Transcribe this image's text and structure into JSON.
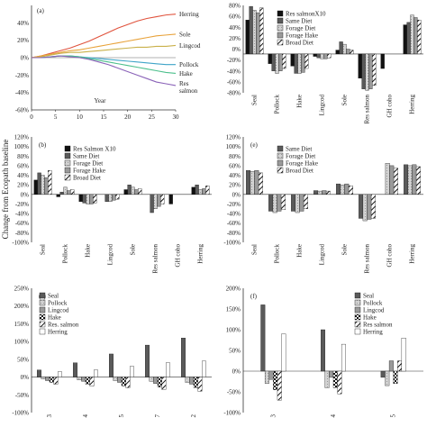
{
  "figure": {
    "shared_ylabel": "Change from Ecopath baseline"
  },
  "chart_data": [
    {
      "id": "a",
      "type": "line",
      "panel_label": "(a)",
      "xlabel": "Year",
      "ylabel": "",
      "xlim": [
        0,
        30
      ],
      "ylim": [
        -60,
        60
      ],
      "xticks": [
        "0",
        "5",
        "10",
        "15",
        "20",
        "25",
        "30"
      ],
      "yticks": [
        "-60%",
        "-40%",
        "-20%",
        "0%",
        "20%",
        "40%"
      ],
      "grid": false,
      "legend_position": "right",
      "series": [
        {
          "name": "Herring",
          "color": "#e0523c",
          "x": [
            0,
            2,
            4,
            6,
            8,
            10,
            12,
            14,
            16,
            18,
            20,
            22,
            24,
            26,
            28,
            30
          ],
          "y": [
            0,
            2,
            5,
            8,
            11,
            15,
            19,
            24,
            29,
            34,
            38,
            42,
            45,
            47,
            49,
            50
          ]
        },
        {
          "name": "Sole",
          "color": "#e8a23a",
          "x": [
            0,
            2,
            4,
            6,
            8,
            10,
            12,
            14,
            16,
            18,
            20,
            22,
            24,
            26,
            28,
            30
          ],
          "y": [
            0,
            2,
            4,
            6,
            8,
            9,
            11,
            13,
            15,
            17,
            19,
            21,
            23,
            25,
            26,
            27
          ]
        },
        {
          "name": "Lingcod",
          "color": "#c9b04a",
          "x": [
            0,
            2,
            4,
            6,
            8,
            10,
            12,
            14,
            16,
            18,
            20,
            22,
            24,
            26,
            28,
            30
          ],
          "y": [
            0,
            1,
            3,
            5,
            6,
            6,
            7,
            8,
            9,
            10,
            11,
            12,
            12,
            13,
            13,
            14
          ]
        },
        {
          "name": "Pollock",
          "color": "#3fa4c8",
          "x": [
            0,
            2,
            4,
            6,
            8,
            10,
            12,
            14,
            16,
            18,
            20,
            22,
            24,
            26,
            28,
            30
          ],
          "y": [
            0,
            0,
            1,
            2,
            2,
            1,
            0,
            -1,
            -2,
            -3,
            -4,
            -5,
            -6,
            -7,
            -8,
            -8
          ]
        },
        {
          "name": "Hake",
          "color": "#4cbf8c",
          "x": [
            0,
            2,
            4,
            6,
            8,
            10,
            12,
            14,
            16,
            18,
            20,
            22,
            24,
            26,
            28,
            30
          ],
          "y": [
            0,
            0,
            1,
            2,
            2,
            1,
            -1,
            -3,
            -5,
            -7,
            -9,
            -11,
            -13,
            -15,
            -17,
            -18
          ]
        },
        {
          "name": "Res salmon",
          "color": "#8a62b8",
          "x": [
            0,
            2,
            4,
            6,
            8,
            10,
            12,
            14,
            16,
            18,
            20,
            22,
            24,
            26,
            28,
            30
          ],
          "y": [
            0,
            0,
            1,
            2,
            1,
            0,
            -2,
            -5,
            -8,
            -12,
            -16,
            -20,
            -24,
            -28,
            -30,
            -32
          ]
        }
      ]
    },
    {
      "id": "d",
      "type": "bar",
      "panel_label": "",
      "ylim": [
        -80,
        100
      ],
      "yticks": [
        "-80%",
        "-60%",
        "-40%",
        "-20%",
        "0%",
        "20%",
        "40%",
        "60%",
        "80%"
      ],
      "categories": [
        "Seal",
        "Pollock",
        "Hake",
        "Lingcod",
        "Sole",
        "Res salmon",
        "GH coho",
        "Herring"
      ],
      "legend_position": "top-right",
      "series": [
        {
          "name": "Res salmonX10",
          "pattern": "black",
          "values": [
            70,
            -20,
            -25,
            -5,
            8,
            -50,
            -30,
            60
          ]
        },
        {
          "name": "Same Diet",
          "pattern": "darkgray",
          "values": [
            98,
            -35,
            -40,
            -8,
            25,
            -72,
            0,
            65
          ]
        },
        {
          "name": "Forage Diet",
          "pattern": "lightgray",
          "values": [
            90,
            -40,
            -40,
            -10,
            20,
            -75,
            0,
            80
          ]
        },
        {
          "name": "Forage Hake",
          "pattern": "gray",
          "values": [
            85,
            -35,
            -38,
            -10,
            10,
            -72,
            0,
            75
          ]
        },
        {
          "name": "Broad Diet",
          "pattern": "hatch",
          "values": [
            95,
            -30,
            -30,
            -8,
            8,
            -65,
            0,
            70
          ]
        }
      ]
    },
    {
      "id": "b",
      "type": "bar",
      "panel_label": "(b)",
      "ylim": [
        -100,
        120
      ],
      "yticks": [
        "-100%",
        "-80%",
        "-60%",
        "-40%",
        "-20%",
        "0%",
        "20%",
        "40%",
        "60%",
        "80%",
        "100%",
        "120%"
      ],
      "categories": [
        "Seal",
        "Pollock",
        "Hake",
        "Lingcod",
        "Sole",
        "Res salmon",
        "GH coho",
        "Herring"
      ],
      "legend_position": "top-center",
      "series": [
        {
          "name": "Res Salmon X10",
          "pattern": "black",
          "values": [
            30,
            -5,
            -15,
            0,
            10,
            0,
            -20,
            15
          ]
        },
        {
          "name": "Same Diet",
          "pattern": "darkgray",
          "values": [
            45,
            5,
            -18,
            -15,
            20,
            -38,
            0,
            20
          ]
        },
        {
          "name": "Forage Diet",
          "pattern": "lightgray",
          "values": [
            40,
            15,
            -20,
            -15,
            15,
            -30,
            0,
            10
          ]
        },
        {
          "name": "Forage Hake",
          "pattern": "gray",
          "values": [
            35,
            8,
            -20,
            -12,
            10,
            -25,
            0,
            12
          ]
        },
        {
          "name": "Broad Diet",
          "pattern": "hatch",
          "values": [
            50,
            10,
            -18,
            -10,
            12,
            -20,
            0,
            18
          ]
        }
      ]
    },
    {
      "id": "e",
      "type": "bar",
      "panel_label": "(e)",
      "ylim": [
        -100,
        120
      ],
      "yticks": [
        "-100%",
        "-80%",
        "-60%",
        "-40%",
        "-20%",
        "0%",
        "20%",
        "40%",
        "60%",
        "80%",
        "100%",
        "120%"
      ],
      "categories": [
        "Seal",
        "Pollock",
        "Hake",
        "Lingcod",
        "Sole",
        "Res salmon",
        "GH coho",
        "Herring"
      ],
      "legend_position": "top-center",
      "series": [
        {
          "name": "Same Diet",
          "pattern": "darkgray",
          "values": [
            50,
            -35,
            -35,
            8,
            22,
            -50,
            0,
            62
          ]
        },
        {
          "name": "Forage Diet",
          "pattern": "lightgray",
          "values": [
            48,
            -38,
            -38,
            7,
            20,
            -55,
            65,
            60
          ]
        },
        {
          "name": "Forage Hake",
          "pattern": "gray",
          "values": [
            50,
            -35,
            -35,
            8,
            22,
            -52,
            60,
            62
          ]
        },
        {
          "name": "Broad Diet",
          "pattern": "hatch",
          "values": [
            45,
            -32,
            -30,
            7,
            18,
            -50,
            55,
            58
          ]
        }
      ]
    },
    {
      "id": "c",
      "type": "bar",
      "panel_label": "(c)",
      "ylim": [
        -100,
        250
      ],
      "yticks": [
        "-100%",
        "-50%",
        "0%",
        "50%",
        "100%",
        "150%",
        "200%",
        "250%"
      ],
      "categories": [
        "3",
        "4",
        "5",
        "7",
        "2"
      ],
      "legend_position": "top-left",
      "series": [
        {
          "name": "Seal",
          "pattern": "darkgray",
          "values": [
            20,
            40,
            65,
            90,
            110
          ]
        },
        {
          "name": "Pollock",
          "pattern": "lightgray",
          "values": [
            -5,
            -8,
            -10,
            -12,
            -15
          ]
        },
        {
          "name": "Lingcod",
          "pattern": "gray",
          "values": [
            -10,
            -12,
            -15,
            -18,
            -20
          ]
        },
        {
          "name": "Hake",
          "pattern": "checker",
          "values": [
            -15,
            -20,
            -25,
            -28,
            -30
          ]
        },
        {
          "name": "Res. salmon",
          "pattern": "hatch",
          "values": [
            -20,
            -25,
            -30,
            -35,
            -40
          ]
        },
        {
          "name": "Herring",
          "pattern": "white",
          "values": [
            15,
            20,
            30,
            40,
            45
          ]
        }
      ]
    },
    {
      "id": "f",
      "type": "bar",
      "panel_label": "(f)",
      "ylim": [
        -100,
        200
      ],
      "yticks": [
        "-100%",
        "-50%",
        "0%",
        "50%",
        "100%",
        "150%",
        "200%"
      ],
      "categories": [
        "3",
        "4",
        "5"
      ],
      "legend_position": "top-center",
      "series": [
        {
          "name": "Seal",
          "pattern": "darkgray",
          "values": [
            160,
            100,
            -15
          ]
        },
        {
          "name": "Pollock",
          "pattern": "lightgray",
          "values": [
            -30,
            -40,
            -35
          ]
        },
        {
          "name": "Lingcod",
          "pattern": "gray",
          "values": [
            -20,
            -15,
            25
          ]
        },
        {
          "name": "Hake",
          "pattern": "checker",
          "values": [
            -45,
            -40,
            -30
          ]
        },
        {
          "name": "Res salmon",
          "pattern": "hatch",
          "values": [
            -70,
            -55,
            25
          ]
        },
        {
          "name": "Herring",
          "pattern": "white",
          "values": [
            90,
            65,
            80
          ]
        }
      ]
    }
  ]
}
